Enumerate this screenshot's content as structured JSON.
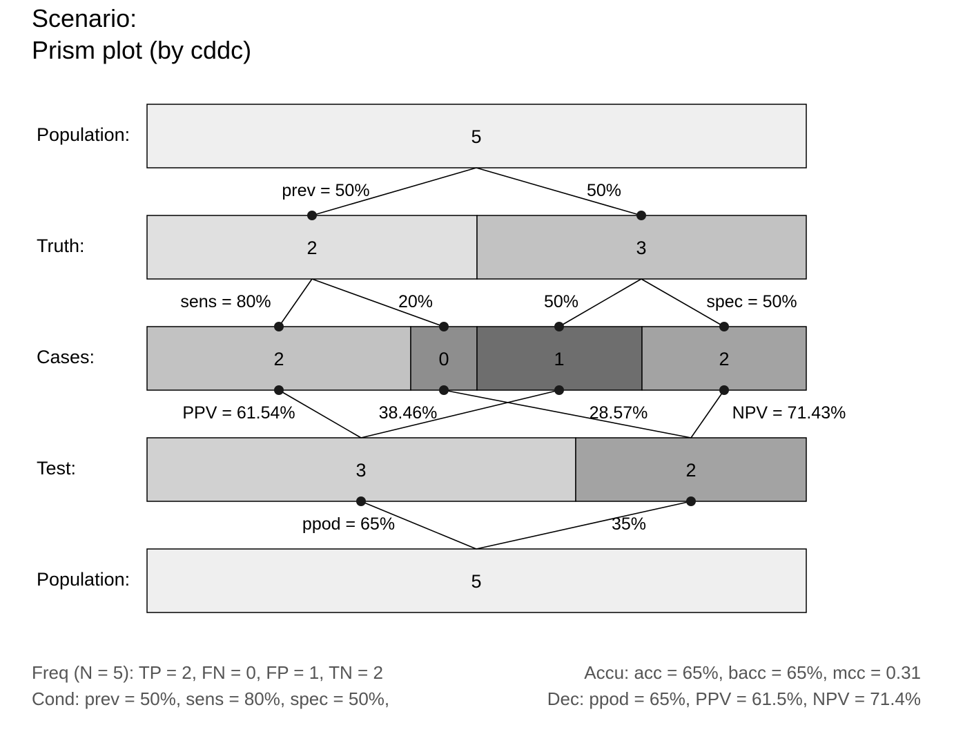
{
  "title": {
    "line1": "Scenario:",
    "line2": "Prism plot (by cddc)"
  },
  "levels": [
    {
      "label": "Population:",
      "segments": [
        {
          "value": "5",
          "fill": "#efefef"
        }
      ]
    },
    {
      "label": "Truth:",
      "segments": [
        {
          "value": "2",
          "fill": "#e0e0e0"
        },
        {
          "value": "3",
          "fill": "#c2c2c2"
        }
      ]
    },
    {
      "label": "Cases:",
      "segments": [
        {
          "value": "2",
          "fill": "#c2c2c2"
        },
        {
          "value": "0",
          "fill": "#8e8e8e"
        },
        {
          "value": "1",
          "fill": "#6e6e6e"
        },
        {
          "value": "2",
          "fill": "#a3a3a3"
        }
      ]
    },
    {
      "label": "Test:",
      "segments": [
        {
          "value": "3",
          "fill": "#d1d1d1"
        },
        {
          "value": "2",
          "fill": "#a3a3a3"
        }
      ]
    },
    {
      "label": "Population:",
      "segments": [
        {
          "value": "5",
          "fill": "#efefef"
        }
      ]
    }
  ],
  "link_labels": {
    "prev": "prev = 50%",
    "prev_c": "50%",
    "sens": "sens = 80%",
    "sens_c": "20%",
    "spec_c": "50%",
    "spec": "spec = 50%",
    "ppv": "PPV = 61.54%",
    "ppv_c": "38.46%",
    "npv_c": "28.57%",
    "npv": "NPV = 71.43%",
    "ppod": "ppod = 65%",
    "ppod_c": "35%"
  },
  "footer": {
    "freq": "Freq (N = 5):  TP = 2, FN = 0, FP = 1, TN = 2",
    "cond": "Cond:  prev = 50%, sens = 80%, spec = 50%,",
    "accu": "Accu:  acc = 65%, bacc = 65%, mcc = 0.31",
    "dec": "Dec:  ppod = 65%, PPV = 61.5%, NPV = 71.4%"
  }
}
